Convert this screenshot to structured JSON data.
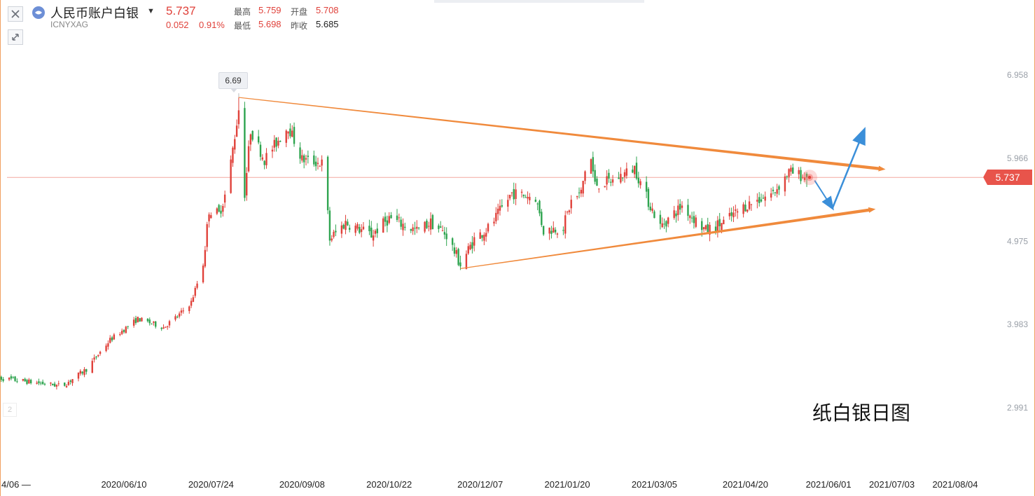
{
  "header": {
    "title": "人民币账户白银",
    "code": "ICNYXAG",
    "last_price": "5.737",
    "change": "0.052",
    "change_pct": "0.91%",
    "stats": {
      "high_label": "最高",
      "high_value": "5.759",
      "open_label": "开盘",
      "open_value": "5.708",
      "low_label": "最低",
      "low_value": "5.698",
      "prev_close_label": "昨收",
      "prev_close_value": "5.685"
    },
    "close_icon": "close-icon",
    "shrink_icon": "collapse-arrows-icon"
  },
  "colors": {
    "up": "#e0413a",
    "down": "#2ea44f",
    "trendline": "#f08a3c",
    "projection": "#3b8fd9",
    "price_line": "#f3a8a0",
    "axis_text": "#9aa0a8"
  },
  "chart_data": {
    "type": "candlestick",
    "y_ticks": [
      "6.958",
      "5.966",
      "4.975",
      "3.983",
      "2.991"
    ],
    "y_tick_values": [
      6.958,
      5.966,
      4.975,
      3.983,
      2.991
    ],
    "x_ticks": [
      "2020/06/10",
      "2020/07/24",
      "2020/09/08",
      "2020/10/22",
      "2020/12/07",
      "2021/01/20",
      "2021/03/05",
      "2021/04/20",
      "2021/06/01",
      "2021/07/03",
      "2021/08/04"
    ],
    "x_start_label": "4/06 —",
    "x_range": [
      "2020-04-06",
      "2021-08-04"
    ],
    "last_date": "2021-05-21",
    "current_price": 5.737,
    "current_price_label": "5.737",
    "peak": {
      "label": "6.69",
      "date": "2020-08-07",
      "value": 6.69
    },
    "trendlines": [
      {
        "name": "upper",
        "from": {
          "date": "2020-08-07",
          "value": 6.69
        },
        "to": {
          "date": "2021-06-27",
          "value": 5.84
        }
      },
      {
        "name": "lower",
        "from": {
          "date": "2020-11-27",
          "value": 4.65
        },
        "to": {
          "date": "2021-06-22",
          "value": 5.35
        }
      }
    ],
    "projection": [
      {
        "date": "2021-05-25",
        "value": 5.7
      },
      {
        "date": "2021-06-03",
        "value": 5.37
      },
      {
        "date": "2021-06-19",
        "value": 6.3
      }
    ],
    "anchors": [
      [
        "2020-04-06",
        3.35
      ],
      [
        "2020-05-10",
        3.25
      ],
      [
        "2020-05-22",
        3.45
      ],
      [
        "2020-06-03",
        3.8
      ],
      [
        "2020-06-17",
        4.05
      ],
      [
        "2020-06-30",
        3.95
      ],
      [
        "2020-07-08",
        4.1
      ],
      [
        "2020-07-14",
        4.25
      ],
      [
        "2020-07-20",
        4.7
      ],
      [
        "2020-07-23",
        5.35
      ],
      [
        "2020-07-28",
        5.3
      ],
      [
        "2020-08-01",
        5.6
      ],
      [
        "2020-08-07",
        6.55
      ],
      [
        "2020-08-10",
        5.55
      ],
      [
        "2020-08-13",
        6.3
      ],
      [
        "2020-08-20",
        5.95
      ],
      [
        "2020-09-01",
        6.35
      ],
      [
        "2020-09-08",
        5.95
      ],
      [
        "2020-09-19",
        5.9
      ],
      [
        "2020-09-22",
        5.0
      ],
      [
        "2020-09-30",
        5.2
      ],
      [
        "2020-10-13",
        5.05
      ],
      [
        "2020-10-22",
        5.25
      ],
      [
        "2020-11-05",
        5.1
      ],
      [
        "2020-11-12",
        5.2
      ],
      [
        "2020-11-20",
        5.05
      ],
      [
        "2020-11-27",
        4.7
      ],
      [
        "2020-12-04",
        5.0
      ],
      [
        "2020-12-12",
        5.15
      ],
      [
        "2020-12-23",
        5.55
      ],
      [
        "2021-01-04",
        5.5
      ],
      [
        "2021-01-08",
        5.1
      ],
      [
        "2021-01-18",
        5.15
      ],
      [
        "2021-01-22",
        5.45
      ],
      [
        "2021-01-27",
        5.55
      ],
      [
        "2021-01-31",
        6.1
      ],
      [
        "2021-02-03",
        5.65
      ],
      [
        "2021-02-12",
        5.7
      ],
      [
        "2021-02-23",
        5.85
      ],
      [
        "2021-03-01",
        5.5
      ],
      [
        "2021-03-08",
        5.15
      ],
      [
        "2021-03-19",
        5.4
      ],
      [
        "2021-03-31",
        5.1
      ],
      [
        "2021-04-09",
        5.2
      ],
      [
        "2021-04-20",
        5.4
      ],
      [
        "2021-05-04",
        5.55
      ],
      [
        "2021-05-12",
        5.8
      ],
      [
        "2021-05-21",
        5.737
      ]
    ],
    "annotation": "纸白银日图"
  }
}
